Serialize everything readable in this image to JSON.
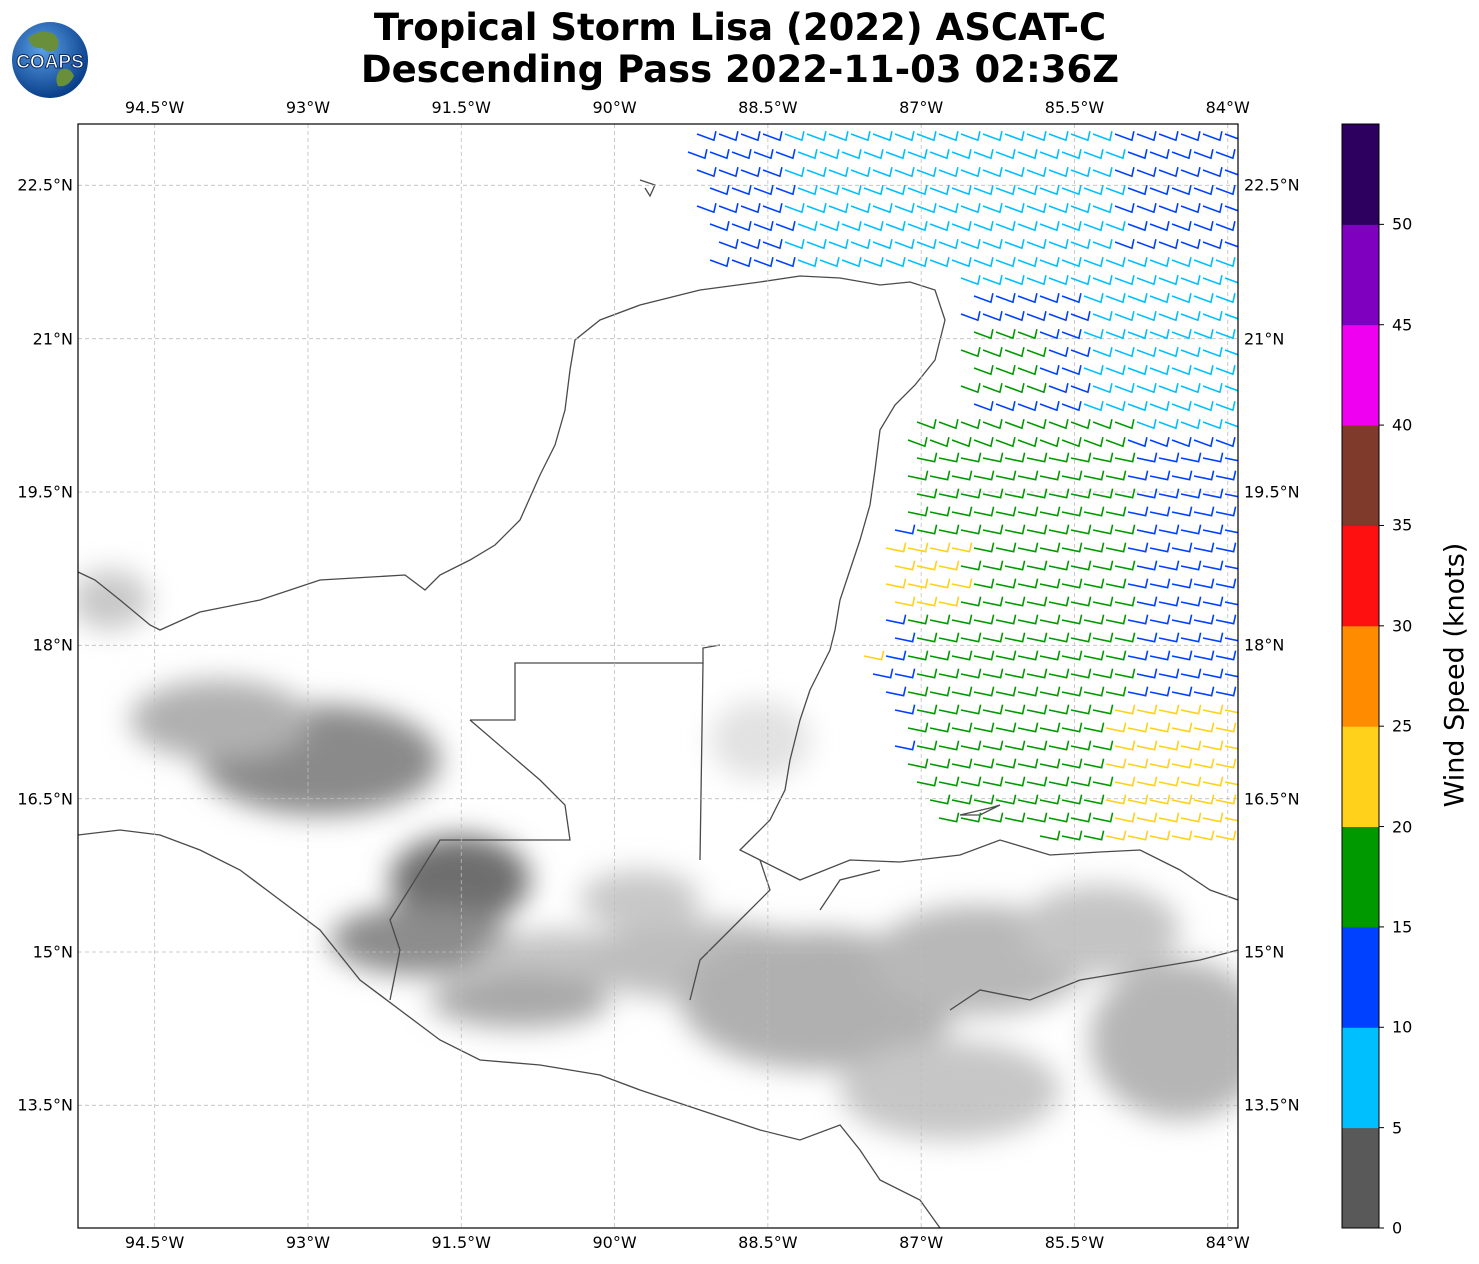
{
  "title": {
    "line1": "Tropical Storm Lisa (2022) ASCAT-C",
    "line2": "Descending Pass 2022-11-03 02:36Z"
  },
  "logo": {
    "text": "COAPS"
  },
  "map": {
    "lon_range": [
      -95.25,
      -83.9
    ],
    "lat_range": [
      12.3,
      23.1
    ],
    "lon_ticks": [
      "94.5°W",
      "93°W",
      "91.5°W",
      "90°W",
      "88.5°W",
      "87°W",
      "85.5°W",
      "84°W"
    ],
    "lat_ticks": [
      "22.5°N",
      "21°N",
      "19.5°N",
      "18°N",
      "16.5°N",
      "15°N",
      "13.5°N"
    ],
    "gridlines": true
  },
  "colorbar": {
    "title": "Wind Speed (knots)",
    "tick_labels": [
      "0",
      "5",
      "10",
      "15",
      "20",
      "25",
      "30",
      "35",
      "40",
      "45",
      "50"
    ],
    "colors": [
      "#595959",
      "#00bfff",
      "#0040ff",
      "#009900",
      "#ffd11a",
      "#ff8c00",
      "#ff1010",
      "#7f3a2b",
      "#f000f0",
      "#8000c0",
      "#2d0060"
    ]
  }
}
